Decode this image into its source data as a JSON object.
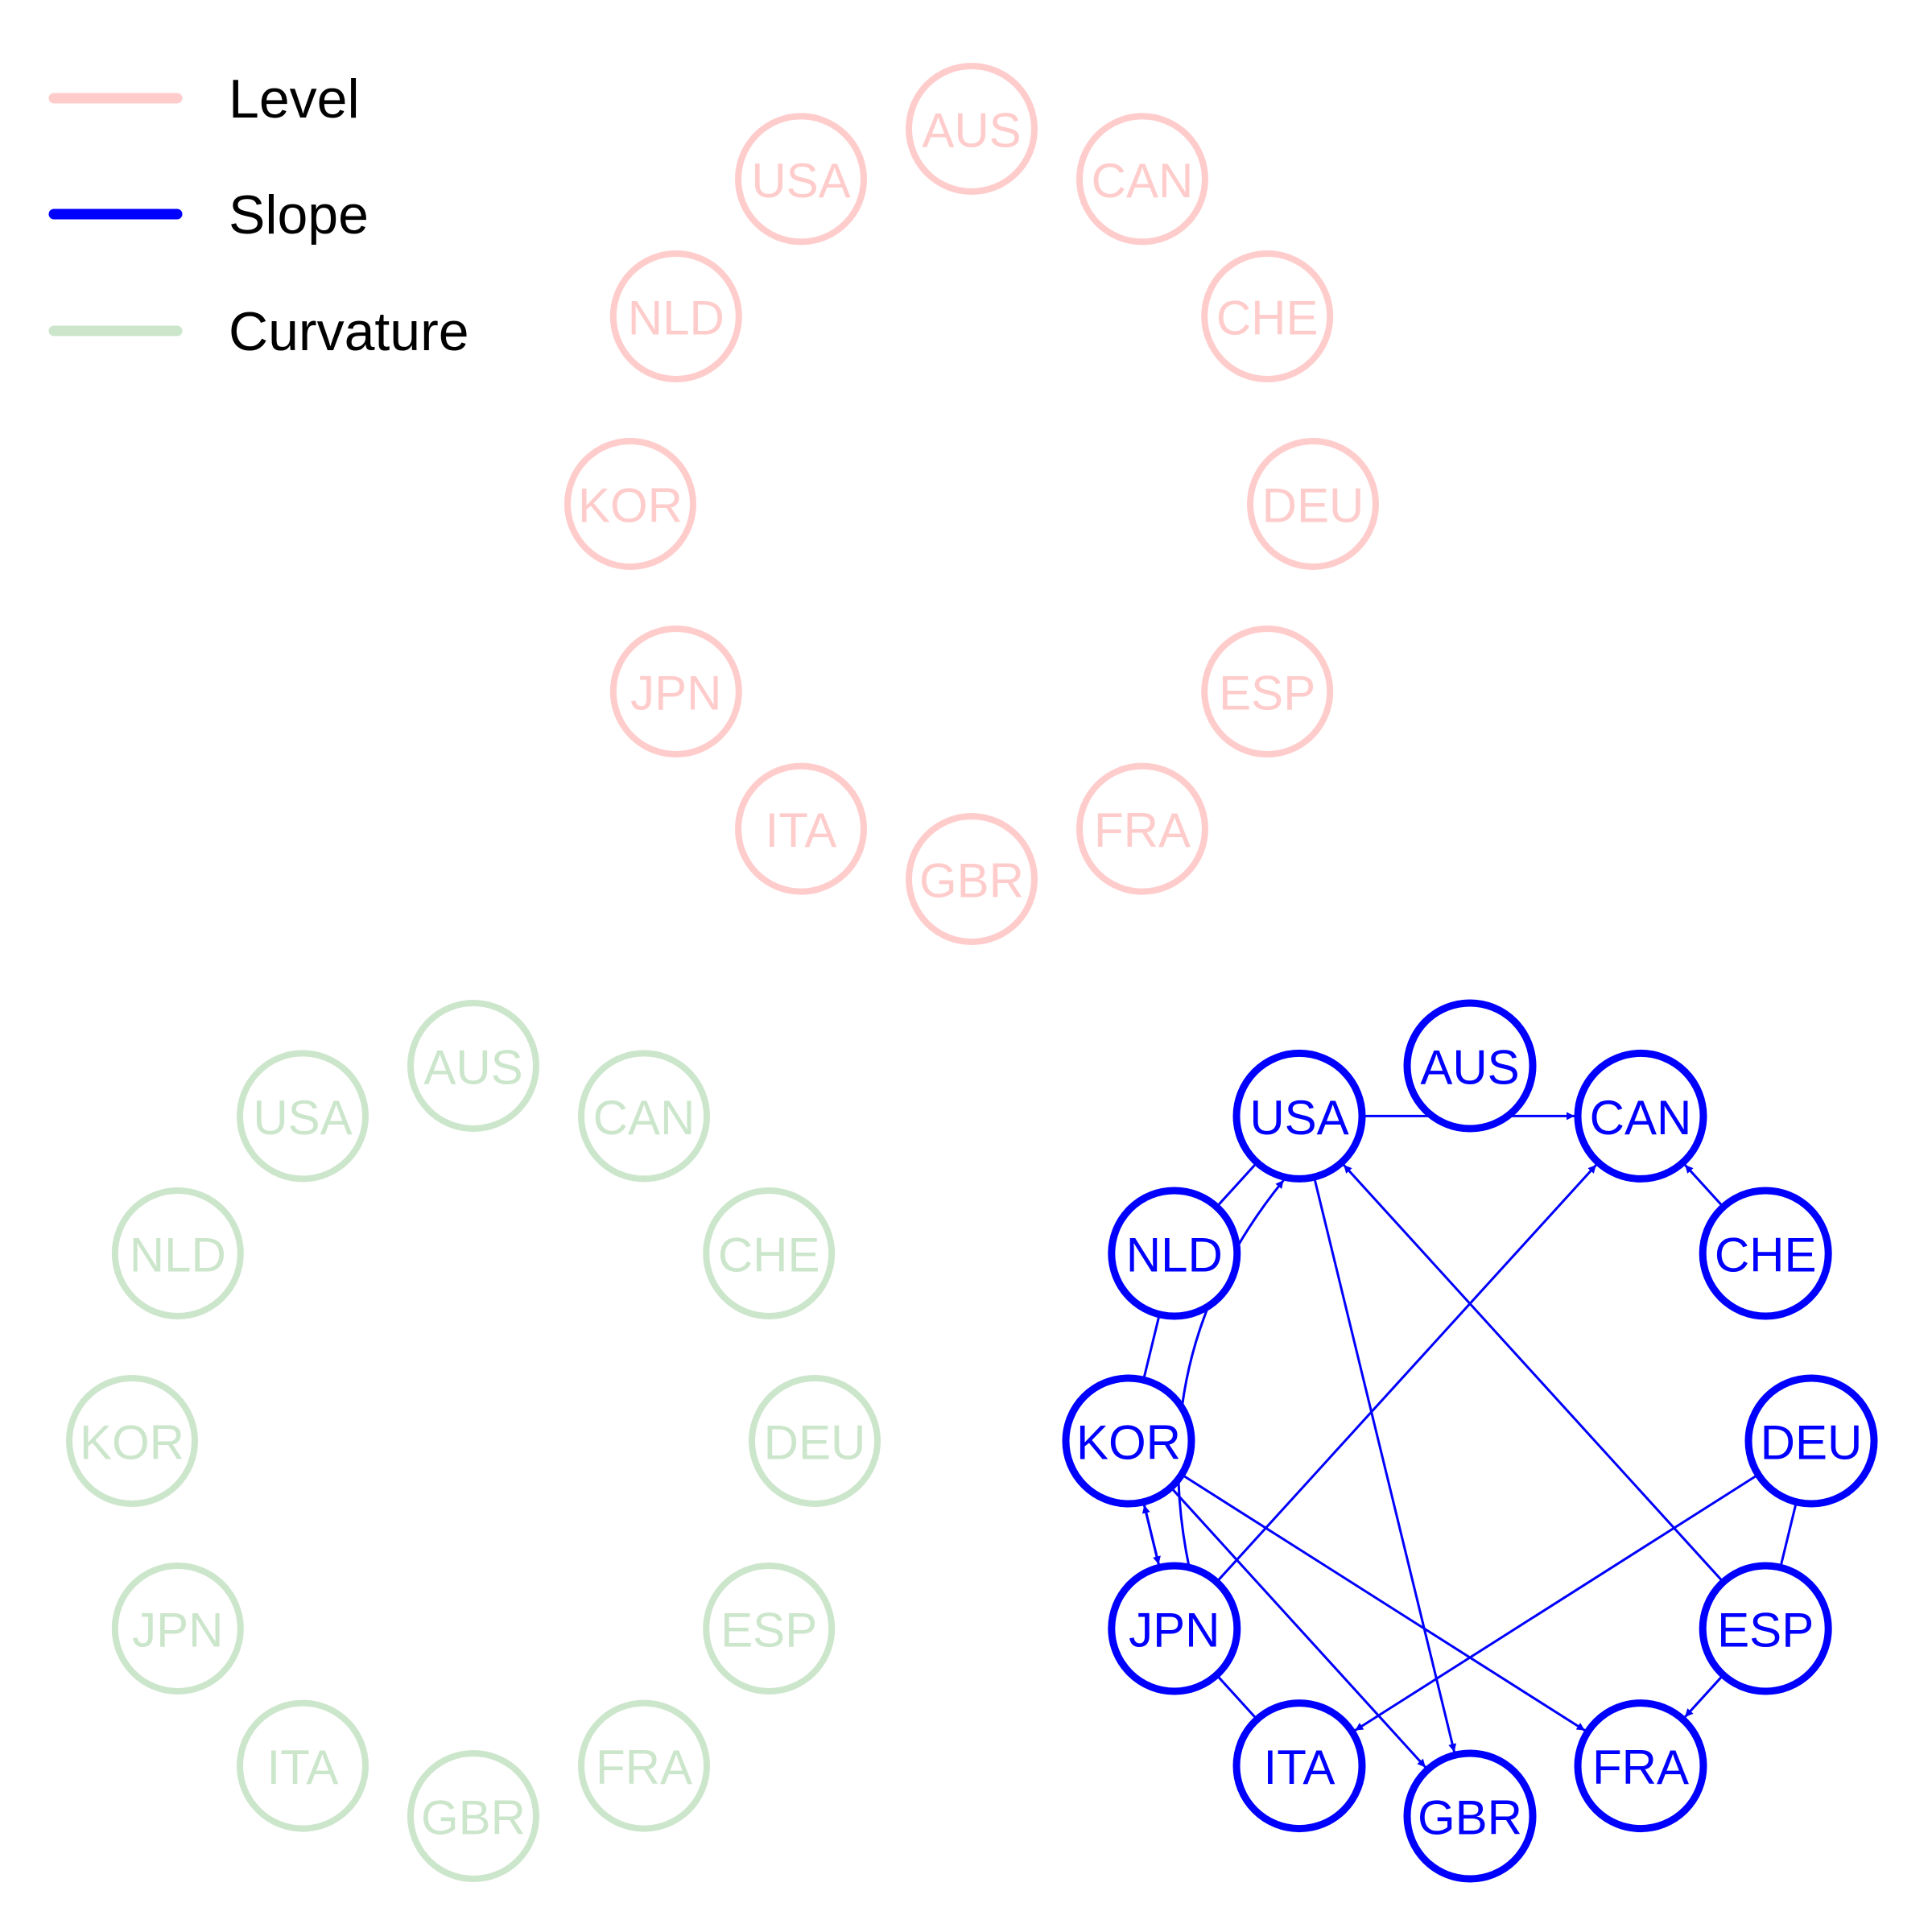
{
  "legend": {
    "items": [
      {
        "label": "Level",
        "color": "#ffcccc"
      },
      {
        "label": "Slope",
        "color": "#0000ff"
      },
      {
        "label": "Curvature",
        "color": "#cce6cc"
      }
    ]
  },
  "networks": [
    {
      "name": "Level",
      "color": "#ffcccc",
      "nodes": [
        "AUS",
        "CAN",
        "CHE",
        "DEU",
        "ESP",
        "FRA",
        "GBR",
        "ITA",
        "JPN",
        "KOR",
        "NLD",
        "USA"
      ],
      "edges": []
    },
    {
      "name": "Curvature",
      "color": "#cce6cc",
      "nodes": [
        "AUS",
        "CAN",
        "CHE",
        "DEU",
        "ESP",
        "FRA",
        "GBR",
        "ITA",
        "JPN",
        "KOR",
        "NLD",
        "USA"
      ],
      "edges": []
    },
    {
      "name": "Slope",
      "color": "#0000ff",
      "nodes": [
        "AUS",
        "CAN",
        "CHE",
        "DEU",
        "ESP",
        "FRA",
        "GBR",
        "ITA",
        "JPN",
        "KOR",
        "NLD",
        "USA"
      ],
      "edges": [
        {
          "from": "USA",
          "to": "CAN",
          "directed": true
        },
        {
          "from": "CHE",
          "to": "CAN",
          "directed": true
        },
        {
          "from": "JPN",
          "to": "CAN",
          "directed": true
        },
        {
          "from": "ESP",
          "to": "USA",
          "directed": true
        },
        {
          "from": "JPN",
          "to": "USA",
          "directed": true,
          "curved": true
        },
        {
          "from": "USA",
          "to": "GBR",
          "directed": true
        },
        {
          "from": "KOR",
          "to": "GBR",
          "directed": true
        },
        {
          "from": "KOR",
          "to": "FRA",
          "directed": true
        },
        {
          "from": "ESP",
          "to": "FRA",
          "directed": true
        },
        {
          "from": "DEU",
          "to": "ITA",
          "directed": true
        },
        {
          "from": "KOR",
          "to": "JPN",
          "directed": true
        },
        {
          "from": "JPN",
          "to": "KOR",
          "directed": true
        },
        {
          "from": "USA",
          "to": "NLD",
          "directed": false
        },
        {
          "from": "NLD",
          "to": "KOR",
          "directed": false
        },
        {
          "from": "JPN",
          "to": "ITA",
          "directed": false
        },
        {
          "from": "DEU",
          "to": "ESP",
          "directed": false
        }
      ]
    }
  ]
}
